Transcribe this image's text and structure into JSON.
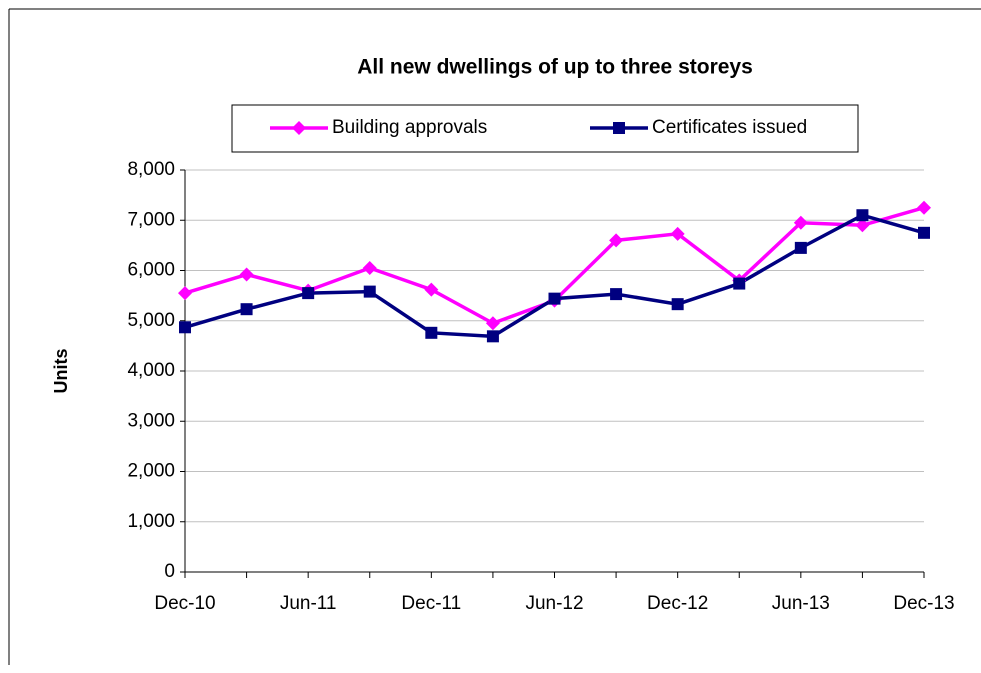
{
  "chart_data": {
    "type": "line",
    "title": "All new dwellings of up to three storeys",
    "y_label": "Units",
    "categories": [
      "Dec-10",
      null,
      "Jun-11",
      null,
      "Dec-11",
      null,
      "Jun-12",
      null,
      "Dec-12",
      null,
      "Jun-13",
      null,
      "Dec-13"
    ],
    "series": [
      {
        "name": "Building approvals",
        "color": "#ff00ff",
        "marker": "diamond",
        "values": [
          5550,
          5920,
          5600,
          6050,
          5620,
          4950,
          5400,
          6600,
          6730,
          5800,
          6950,
          6900,
          7250
        ]
      },
      {
        "name": "Certificates issued",
        "color": "#000080",
        "marker": "square",
        "values": [
          4870,
          5230,
          5550,
          5580,
          4760,
          4690,
          5440,
          5530,
          5330,
          5740,
          6450,
          7100,
          6750
        ]
      }
    ],
    "ylim": [
      0,
      8000
    ],
    "yticks": [
      0,
      {
        "value": 1000,
        "label": "1,000"
      },
      {
        "value": 2000,
        "label": "2,000"
      },
      {
        "value": 3000,
        "label": "3,000"
      },
      {
        "value": 4000,
        "label": "4,000"
      },
      {
        "value": 5000,
        "label": "5,000"
      },
      {
        "value": 6000,
        "label": "6,000"
      },
      {
        "value": 7000,
        "label": "7,000"
      },
      {
        "value": 8000,
        "label": "8,000"
      }
    ],
    "grid": true,
    "legend": "top"
  }
}
